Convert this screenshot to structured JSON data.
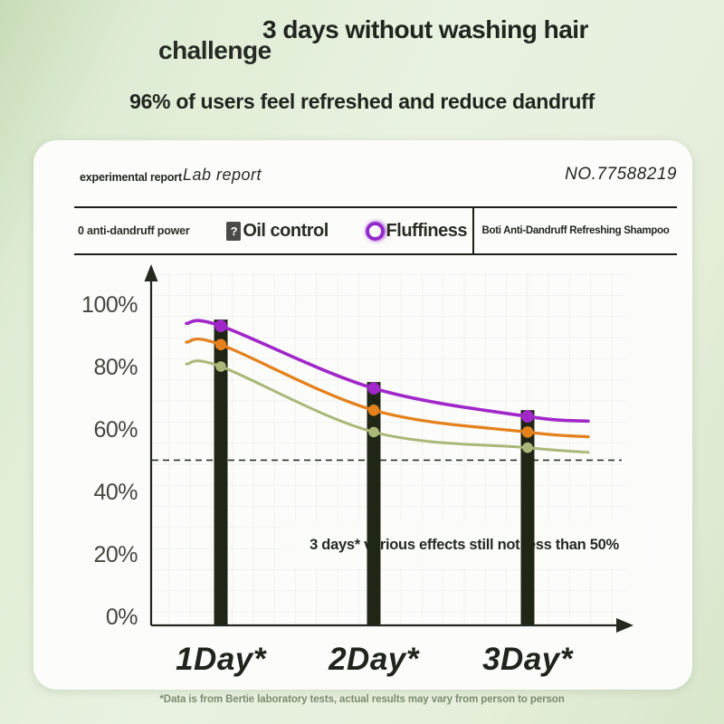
{
  "header": {
    "challenge": "challenge",
    "title": "3 days without washing hair",
    "subtitle": "96% of users feel refreshed and reduce dandruff"
  },
  "report": {
    "label": "experimental report",
    "name": "Lab report",
    "number": "NO.77588219"
  },
  "legend": {
    "item1": "0 anti-dandruff power",
    "item2_icon": "?",
    "item2": "Oil control",
    "item3": "Fluffiness",
    "product": "Boti Anti-Dandruff Refreshing Shampoo"
  },
  "chart_data": {
    "type": "line",
    "categories": [
      "1Day*",
      "2Day*",
      "3Day*"
    ],
    "series": [
      {
        "name": "Fluffiness",
        "color": "#a127c9",
        "values": [
          93,
          73,
          64
        ]
      },
      {
        "name": "Oil control",
        "color": "#e4811d",
        "values": [
          87,
          66,
          59
        ]
      },
      {
        "name": "Anti-dandruff power",
        "color": "#a9b878",
        "values": [
          80,
          59,
          54
        ]
      }
    ],
    "y_ticks": [
      "100%",
      "80%",
      "60%",
      "40%",
      "20%",
      "0%"
    ],
    "y_tick_values": [
      100,
      80,
      60,
      40,
      20,
      0
    ],
    "ylim": [
      0,
      100
    ],
    "threshold_line": 50,
    "annotation": "3 days* various effects still not less than 50%",
    "bar_color": "#1f2616",
    "axis_color": "#24281f",
    "grid": true,
    "legend_position": "top"
  },
  "footnote": "*Data is from Bertie laboratory tests, actual results may vary from person to person"
}
